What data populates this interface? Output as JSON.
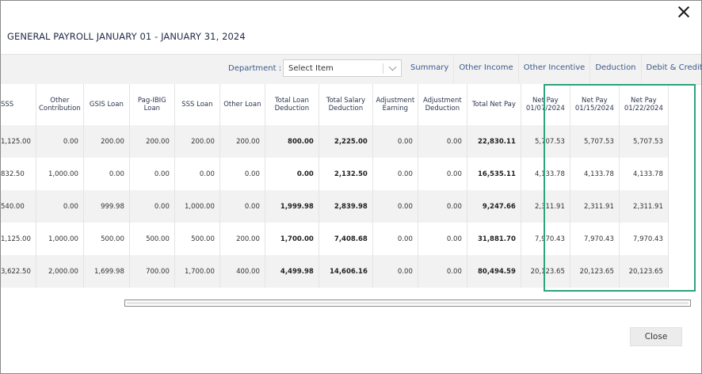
{
  "window": {
    "title": "GENERAL PAYROLL JANUARY 01 - JANUARY 31, 2024"
  },
  "toolbar": {
    "department_label": "Department :",
    "department_value": "Select Item",
    "tabs": [
      "Summary",
      "Other Income",
      "Other Incentive",
      "Deduction",
      "Debit & Credit"
    ]
  },
  "table": {
    "columns": [
      "SSS",
      "Other Contribution",
      "GSIS Loan",
      "Pag-IBIG Loan",
      "SSS Loan",
      "Other Loan",
      "Total Loan Deduction",
      "Total Salary Deduction",
      "Adjustment Earning",
      "Adjustment Deduction",
      "Total Net Pay",
      "Net Pay 01/07/2024",
      "Net Pay 01/15/2024",
      "Net Pay 01/22/2024"
    ],
    "rows": [
      [
        "1,125.00",
        "0.00",
        "200.00",
        "200.00",
        "200.00",
        "200.00",
        "800.00",
        "2,225.00",
        "0.00",
        "0.00",
        "22,830.11",
        "5,707.53",
        "5,707.53",
        "5,707.53"
      ],
      [
        "832.50",
        "1,000.00",
        "0.00",
        "0.00",
        "0.00",
        "0.00",
        "0.00",
        "2,132.50",
        "0.00",
        "0.00",
        "16,535.11",
        "4,133.78",
        "4,133.78",
        "4,133.78"
      ],
      [
        "540.00",
        "0.00",
        "999.98",
        "0.00",
        "1,000.00",
        "0.00",
        "1,999.98",
        "2,839.98",
        "0.00",
        "0.00",
        "9,247.66",
        "2,311.91",
        "2,311.91",
        "2,311.91"
      ],
      [
        "1,125.00",
        "1,000.00",
        "500.00",
        "500.00",
        "500.00",
        "200.00",
        "1,700.00",
        "7,408.68",
        "0.00",
        "0.00",
        "31,881.70",
        "7,970.43",
        "7,970.43",
        "7,970.43"
      ],
      [
        "3,622.50",
        "2,000.00",
        "1,699.98",
        "700.00",
        "1,700.00",
        "400.00",
        "4,499.98",
        "14,606.16",
        "0.00",
        "0.00",
        "80,494.59",
        "20,123.65",
        "20,123.65",
        "20,123.65"
      ]
    ]
  },
  "footer": {
    "close_label": "Close"
  },
  "colors": {
    "highlight": "#2ea37d",
    "link": "#3d5a8a"
  }
}
